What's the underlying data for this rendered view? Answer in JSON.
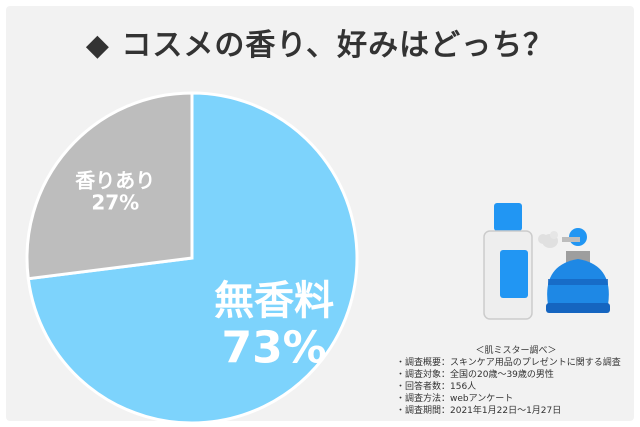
{
  "title": "◆ コスメの香り、好みはどっち？",
  "colors": {
    "no_fragrance": "#7dd3fc",
    "fragrance": "#bdbdbd",
    "accent_blue": "#1e88e5"
  },
  "chart_data": {
    "type": "pie",
    "title": "◆ コスメの香り、好みはどっち？",
    "slices": [
      {
        "label": "無香料",
        "value": 73,
        "value_label": "73%",
        "color": "#7dd3fc"
      },
      {
        "label": "香りあり",
        "value": 27,
        "value_label": "27%",
        "color": "#bdbdbd"
      }
    ]
  },
  "illustration": {
    "items": [
      "lotion-bottle-icon",
      "perfume-atomizer-icon"
    ]
  },
  "survey": {
    "title": "＜肌ミスター調べ＞",
    "lines": [
      "・調査概要：スキンケア用品のプレゼントに関する調査",
      "・調査対象：全国の20歳〜39歳の男性",
      "・回答者数：156人",
      "・調査方法：webアンケート",
      "・調査期間：2021年1月22日〜1月27日"
    ]
  }
}
